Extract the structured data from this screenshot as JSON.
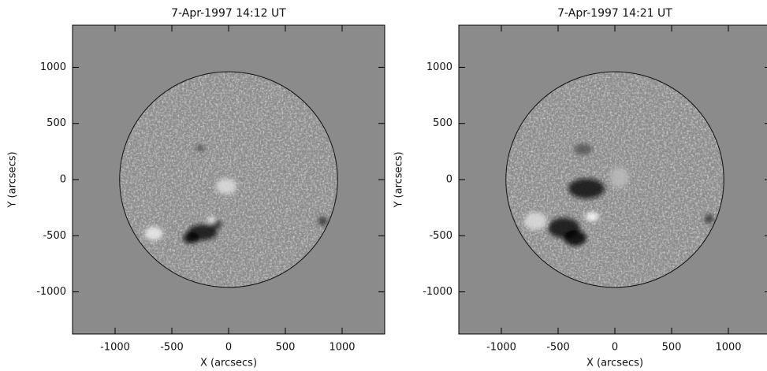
{
  "chart_data": [
    {
      "type": "image",
      "title": "7-Apr-1997 14:12 UT",
      "xlabel": "X (arcsecs)",
      "ylabel": "Y (arcsecs)",
      "xlim": [
        -1375,
        1375
      ],
      "ylim": [
        -1375,
        1375
      ],
      "xticks": [
        -1000,
        -500,
        0,
        500,
        1000
      ],
      "yticks": [
        -1000,
        -500,
        0,
        500,
        1000
      ]
    },
    {
      "type": "image",
      "title": "7-Apr-1997 14:21 UT",
      "xlabel": "X (arcsecs)",
      "ylabel": "Y (arcsecs)",
      "xlim": [
        -1375,
        1375
      ],
      "ylim": [
        -1375,
        1375
      ],
      "xticks": [
        -1000,
        -500,
        0,
        500,
        1000
      ],
      "yticks": [
        -1000,
        -500,
        0,
        500,
        1000
      ]
    }
  ]
}
